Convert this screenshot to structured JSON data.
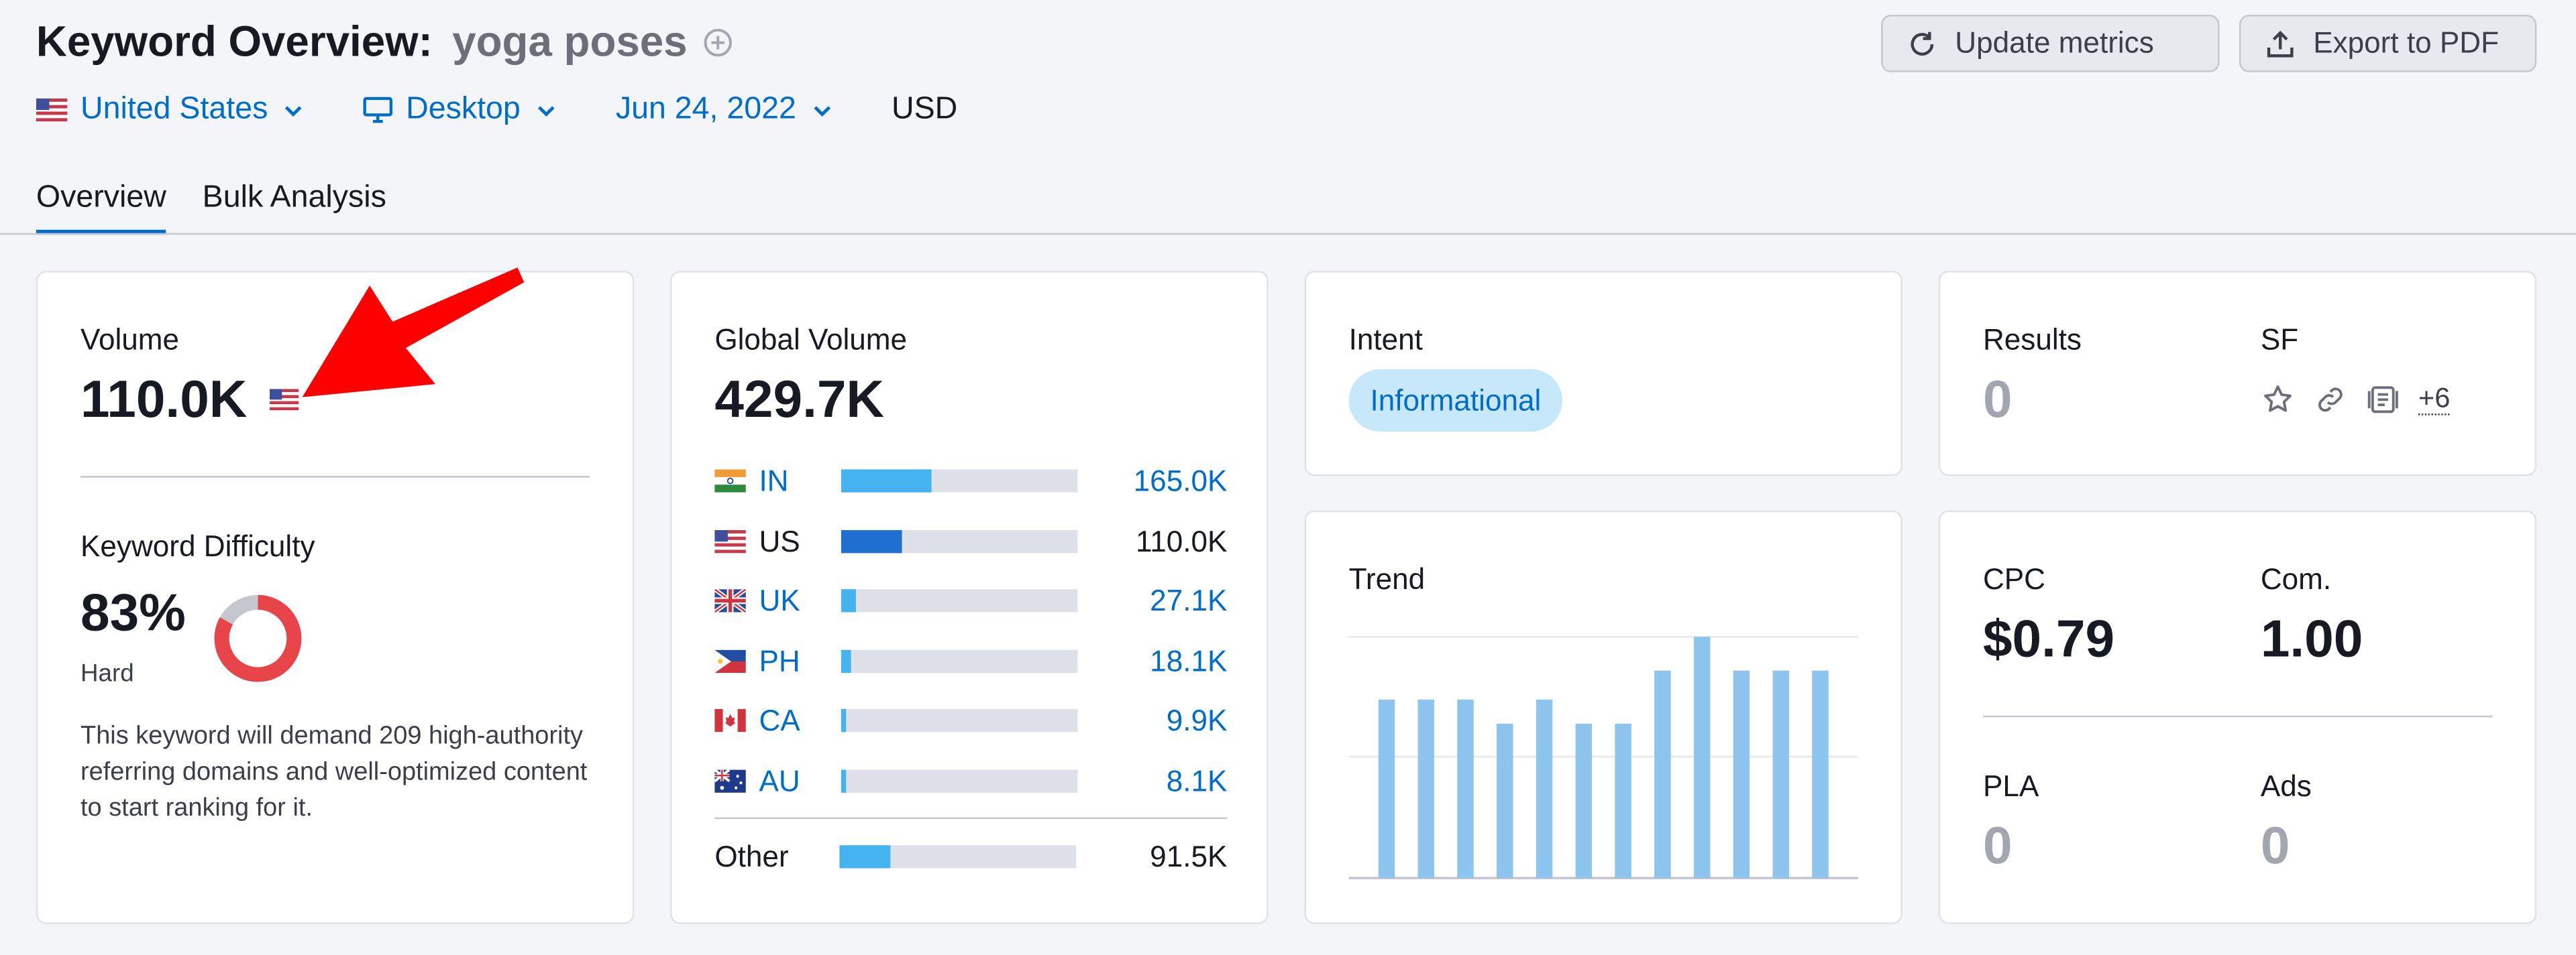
{
  "header": {
    "title": "Keyword Overview:",
    "keyword": "yoga poses",
    "update_label": "Update metrics",
    "export_label": "Export to PDF"
  },
  "filters": {
    "country": "United States",
    "device": "Desktop",
    "date": "Jun 24, 2022",
    "currency": "USD"
  },
  "tabs": [
    {
      "label": "Overview",
      "active": true
    },
    {
      "label": "Bulk Analysis",
      "active": false
    }
  ],
  "volume": {
    "label": "Volume",
    "value": "110.0K"
  },
  "difficulty": {
    "label": "Keyword Difficulty",
    "value": "83%",
    "level": "Hard",
    "percent": 83,
    "description": "This keyword will demand 209 high-authority referring domains and well-optimized content to start ranking for it."
  },
  "global_volume": {
    "label": "Global Volume",
    "value": "429.7K",
    "countries": [
      {
        "code": "IN",
        "value": "165.0K",
        "share": 0.385
      },
      {
        "code": "US",
        "value": "110.0K",
        "share": 0.256
      },
      {
        "code": "UK",
        "value": "27.1K",
        "share": 0.063
      },
      {
        "code": "PH",
        "value": "18.1K",
        "share": 0.042
      },
      {
        "code": "CA",
        "value": "9.9K",
        "share": 0.023
      },
      {
        "code": "AU",
        "value": "8.1K",
        "share": 0.019
      }
    ],
    "other": {
      "label": "Other",
      "value": "91.5K",
      "share": 0.213
    }
  },
  "intent": {
    "label": "Intent",
    "badge": "Informational"
  },
  "results": {
    "label": "Results",
    "value": "0",
    "sf_label": "SF",
    "sf_more": "+6"
  },
  "trend": {
    "label": "Trend",
    "chart_data": {
      "type": "bar",
      "values": [
        0.74,
        0.74,
        0.74,
        0.64,
        0.74,
        0.64,
        0.64,
        0.86,
        1.0,
        0.86,
        0.86,
        0.86
      ],
      "color": "#8ec5ee"
    }
  },
  "cpc": {
    "label": "CPC",
    "value": "$0.79"
  },
  "com": {
    "label": "Com.",
    "value": "1.00"
  },
  "pla": {
    "label": "PLA",
    "value": "0"
  },
  "ads": {
    "label": "Ads",
    "value": "0"
  },
  "colors": {
    "accent": "#006dca",
    "difficulty_red": "#e8454b",
    "arrow_red": "#ff0000"
  }
}
